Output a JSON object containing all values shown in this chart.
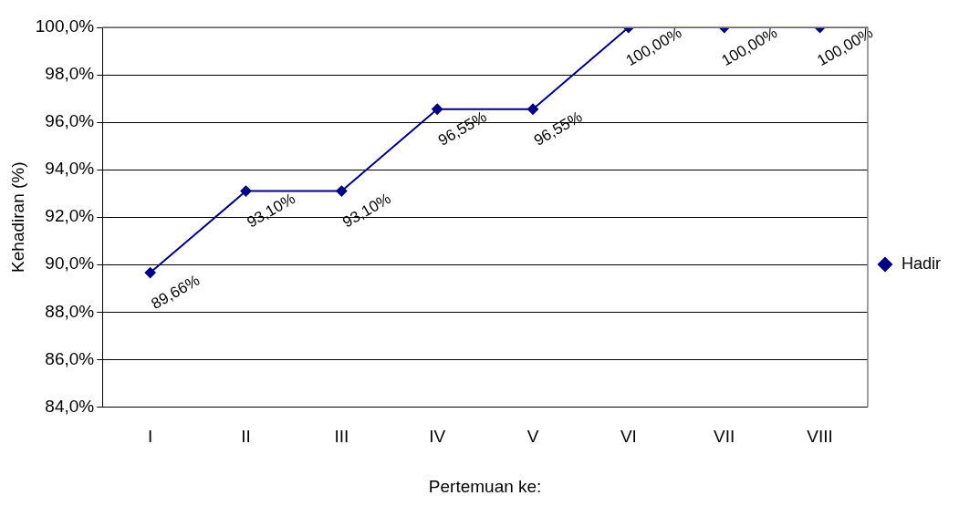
{
  "chart_data": {
    "type": "line",
    "categories": [
      "I",
      "II",
      "III",
      "IV",
      "V",
      "VI",
      "VII",
      "VIII"
    ],
    "series": [
      {
        "name": "Hadir",
        "color": "#000080",
        "values": [
          89.66,
          93.1,
          93.1,
          96.55,
          96.55,
          100,
          100,
          100
        ],
        "value_labels": [
          "89,66%",
          "93,10%",
          "93,10%",
          "96,55%",
          "96,55%",
          "100,00%",
          "100,00%",
          "100,00%"
        ]
      }
    ],
    "xlabel": "Pertemuan ke:",
    "ylabel": "Kehadiran (%)",
    "ylim": [
      84,
      100
    ],
    "yticks": [
      {
        "value": 84,
        "label": "84,0%"
      },
      {
        "value": 86,
        "label": "86,0%"
      },
      {
        "value": 88,
        "label": "88,0%"
      },
      {
        "value": 90,
        "label": "90,0%"
      },
      {
        "value": 92,
        "label": "92,0%"
      },
      {
        "value": 94,
        "label": "94,0%"
      },
      {
        "value": 96,
        "label": "96,0%"
      },
      {
        "value": 98,
        "label": "98,0%"
      },
      {
        "value": 100,
        "label": "100,0%"
      }
    ],
    "grid": "y",
    "legend": "right",
    "marker": "diamond",
    "line_style": "solid"
  }
}
